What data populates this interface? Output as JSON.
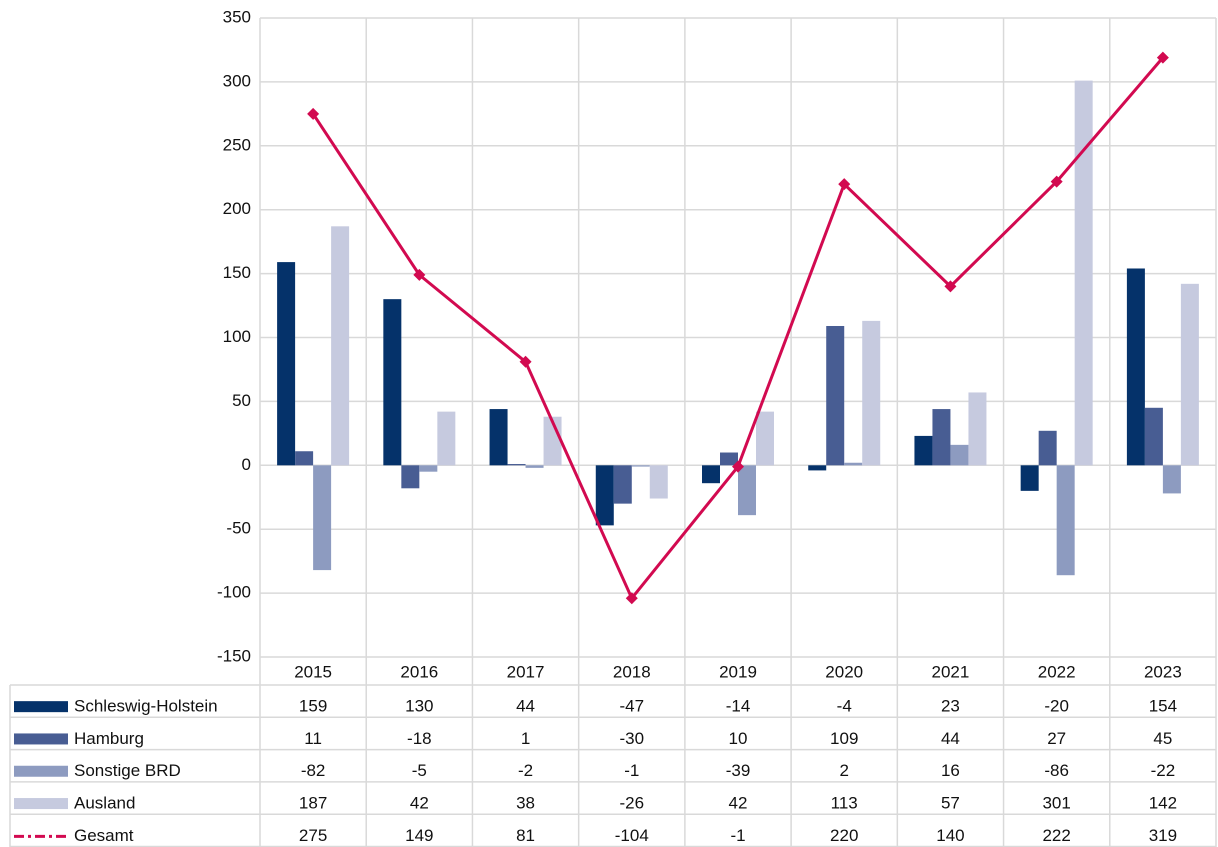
{
  "chart_data": {
    "type": "bar",
    "categories": [
      "2015",
      "2016",
      "2017",
      "2018",
      "2019",
      "2020",
      "2021",
      "2022",
      "2023"
    ],
    "series": [
      {
        "name": "Schleswig-Holstein",
        "type": "bar",
        "color": "#05326a",
        "values": [
          159,
          130,
          44,
          -47,
          -14,
          -4,
          23,
          -20,
          154
        ]
      },
      {
        "name": "Hamburg",
        "type": "bar",
        "color": "#485d93",
        "values": [
          11,
          -18,
          1,
          -30,
          10,
          109,
          44,
          27,
          45
        ]
      },
      {
        "name": "Sonstige BRD",
        "type": "bar",
        "color": "#8d9bc0",
        "values": [
          -82,
          -5,
          -2,
          -1,
          -39,
          2,
          16,
          -86,
          -22
        ]
      },
      {
        "name": "Ausland",
        "type": "bar",
        "color": "#c6cadf",
        "values": [
          187,
          42,
          38,
          -26,
          42,
          113,
          57,
          301,
          142
        ]
      },
      {
        "name": "Gesamt",
        "type": "line",
        "color": "#d20a50",
        "values": [
          275,
          149,
          81,
          -104,
          -1,
          220,
          140,
          222,
          319
        ]
      }
    ],
    "ylim": [
      -150,
      350
    ],
    "yticks": [
      -150,
      -100,
      -50,
      0,
      50,
      100,
      150,
      200,
      250,
      300,
      350
    ],
    "grid": true
  }
}
